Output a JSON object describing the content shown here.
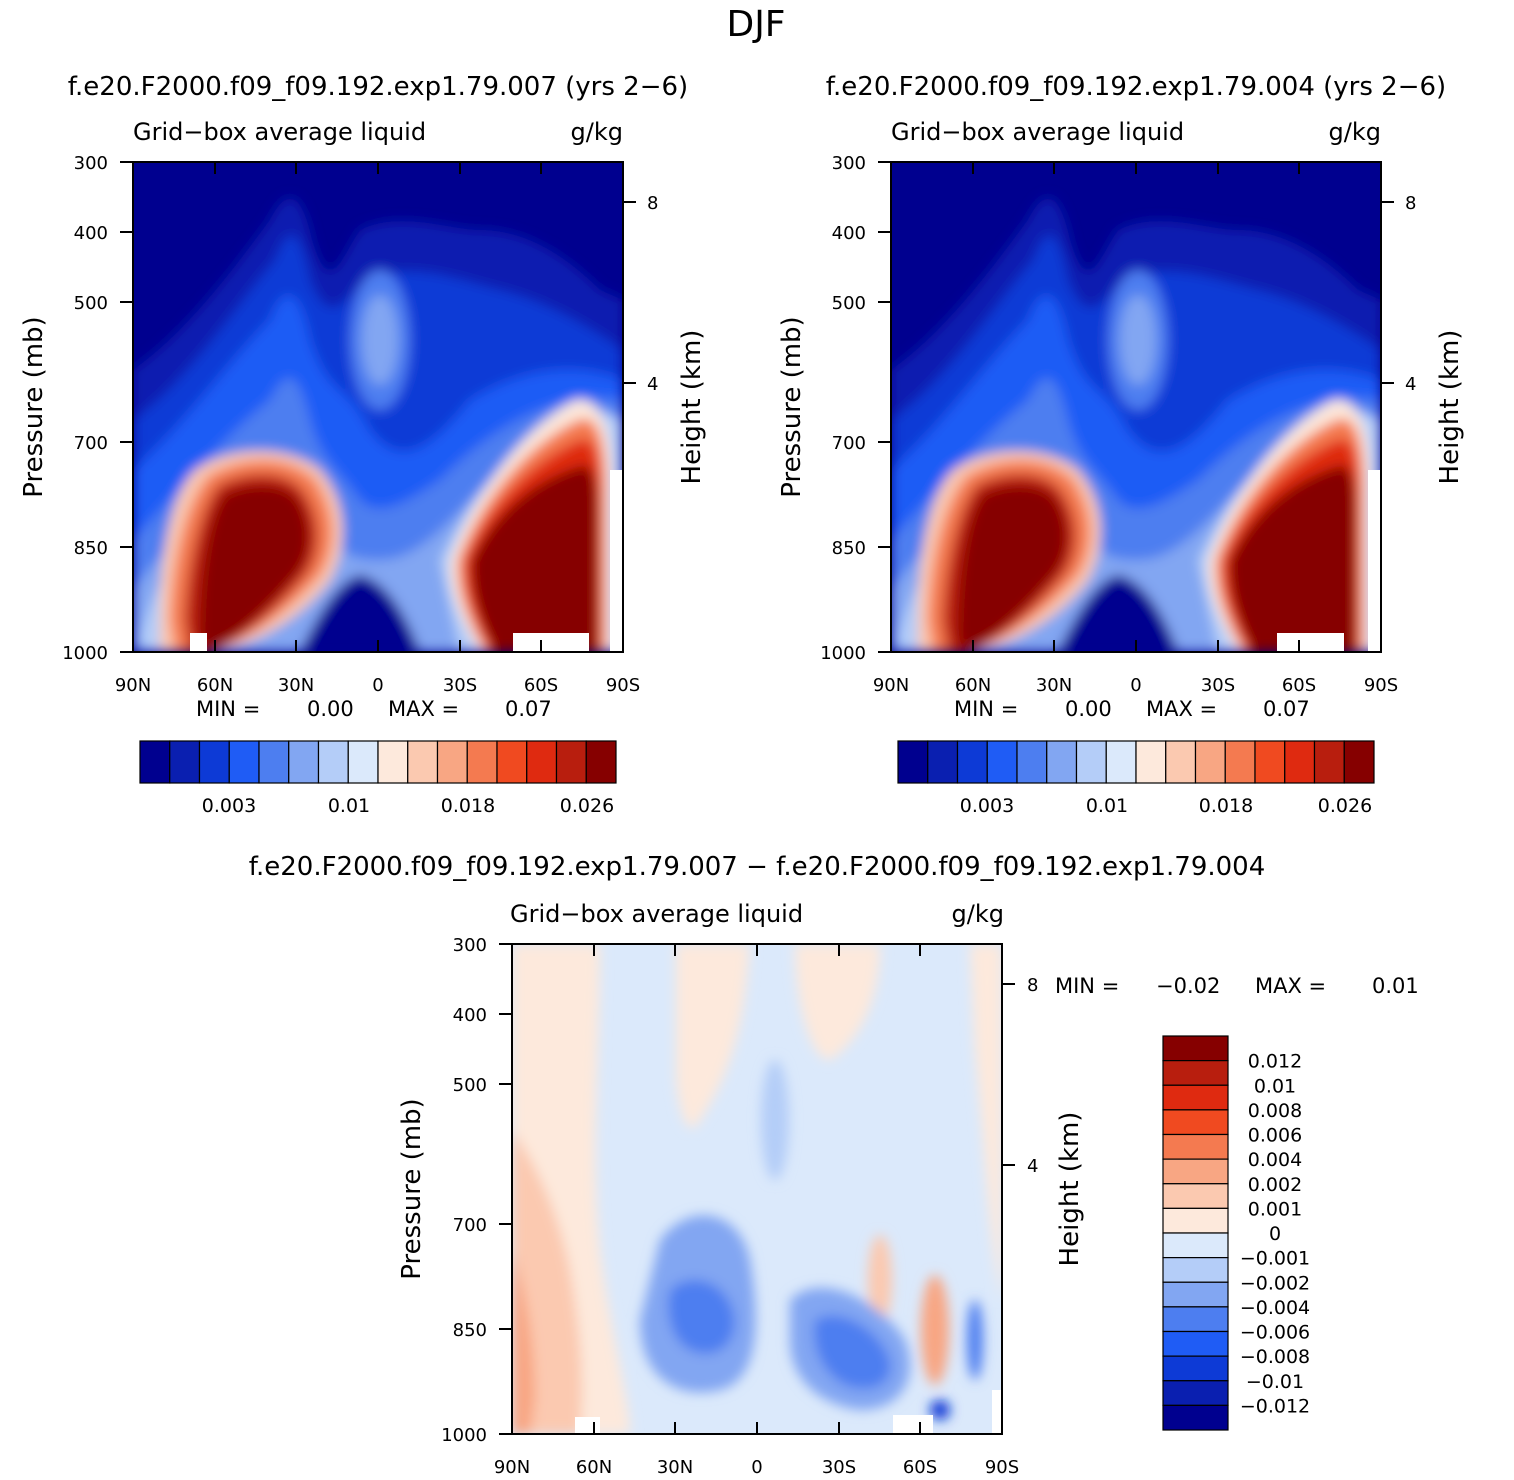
{
  "page_title": "DJF",
  "colors": {
    "panel_scale": [
      "#00008f",
      "#0a1fb0",
      "#0d3ad6",
      "#1f5cf5",
      "#4d7ef0",
      "#82a6f2",
      "#b4cdf8",
      "#dbe9fb",
      "#fde9dc",
      "#fbc9b0",
      "#f8a683",
      "#f47a50",
      "#f04a20",
      "#df2a10",
      "#b81e0e",
      "#860000"
    ],
    "diff_scale": [
      "#00008f",
      "#0a1fb0",
      "#0d3ad6",
      "#1f5cf5",
      "#4d7ef0",
      "#82a6f2",
      "#b4cdf8",
      "#dbe9fb",
      "#fde9dc",
      "#fbc9b0",
      "#f8a683",
      "#f47a50",
      "#f04a20",
      "#df2a10",
      "#b81e0e",
      "#860000"
    ]
  },
  "chart_data": [
    {
      "type": "heatmap",
      "title": "f.e20.F2000.f09_f09.192.exp1.79.007 (yrs 2−6)",
      "left_subtitle": "Grid−box average liquid",
      "right_subtitle": "g/kg",
      "xlabel": "",
      "ylabel": "Pressure (mb)",
      "y2label": "Height (km)",
      "x_ticks": [
        "90N",
        "60N",
        "30N",
        "0",
        "30S",
        "60S",
        "90S"
      ],
      "y_ticks": [
        "300",
        "400",
        "500",
        "700",
        "850",
        "1000"
      ],
      "y_values": [
        300,
        400,
        500,
        700,
        850,
        1000
      ],
      "y2_ticks": [
        "8",
        "4"
      ],
      "xlim": [
        90,
        -90
      ],
      "ylim": [
        1000,
        300
      ],
      "min_text": "MIN =",
      "min_value": "0.00",
      "max_text": "MAX =",
      "max_value": "0.07",
      "colorbar_labels": [
        "0.003",
        "0.01",
        "0.018",
        "0.026"
      ],
      "colorbar_levels": 16
    },
    {
      "type": "heatmap",
      "title": "f.e20.F2000.f09_f09.192.exp1.79.004 (yrs 2−6)",
      "left_subtitle": "Grid−box average liquid",
      "right_subtitle": "g/kg",
      "xlabel": "",
      "ylabel": "Pressure (mb)",
      "y2label": "Height (km)",
      "x_ticks": [
        "90N",
        "60N",
        "30N",
        "0",
        "30S",
        "60S",
        "90S"
      ],
      "y_ticks": [
        "300",
        "400",
        "500",
        "700",
        "850",
        "1000"
      ],
      "y_values": [
        300,
        400,
        500,
        700,
        850,
        1000
      ],
      "y2_ticks": [
        "8",
        "4"
      ],
      "xlim": [
        90,
        -90
      ],
      "ylim": [
        1000,
        300
      ],
      "min_text": "MIN =",
      "min_value": "0.00",
      "max_text": "MAX =",
      "max_value": "0.07",
      "colorbar_labels": [
        "0.003",
        "0.01",
        "0.018",
        "0.026"
      ],
      "colorbar_levels": 16
    },
    {
      "type": "heatmap",
      "title": "f.e20.F2000.f09_f09.192.exp1.79.007 − f.e20.F2000.f09_f09.192.exp1.79.004",
      "left_subtitle": "Grid−box average liquid",
      "right_subtitle": "g/kg",
      "xlabel": "",
      "ylabel": "Pressure (mb)",
      "y2label": "Height (km)",
      "x_ticks": [
        "90N",
        "60N",
        "30N",
        "0",
        "30S",
        "60S",
        "90S"
      ],
      "y_ticks": [
        "300",
        "400",
        "500",
        "700",
        "850",
        "1000"
      ],
      "y_values": [
        300,
        400,
        500,
        700,
        850,
        1000
      ],
      "y2_ticks": [
        "8",
        "4"
      ],
      "xlim": [
        90,
        -90
      ],
      "ylim": [
        1000,
        300
      ],
      "min_text": "MIN =",
      "min_value": "−0.02",
      "max_text": "MAX =",
      "max_value": "0.01",
      "colorbar_labels": [
        "0.012",
        "0.01",
        "0.008",
        "0.006",
        "0.004",
        "0.002",
        "0.001",
        "0",
        "−0.001",
        "−0.002",
        "−0.004",
        "−0.006",
        "−0.008",
        "−0.01",
        "−0.012"
      ],
      "colorbar_levels": 16
    }
  ]
}
